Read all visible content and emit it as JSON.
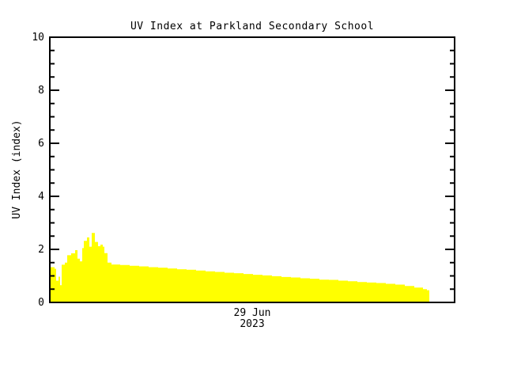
{
  "window": {
    "background": "#ffffff"
  },
  "chart_data": {
    "type": "area",
    "title": "UV Index at Parkland Secondary School",
    "ylabel": "UV Index (index)",
    "xlabel": "",
    "x_tick_labels": [
      "29 Jun",
      "2023"
    ],
    "ylim": [
      0,
      10
    ],
    "y_major_ticks": [
      0,
      2,
      4,
      6,
      8,
      10
    ],
    "y_tick_labels": [
      "0",
      "2",
      "4",
      "6",
      "8",
      "10"
    ],
    "y_minor_tick_interval": 0.5,
    "grid": false,
    "legend": "none",
    "colors": {
      "fill": "#FFFF00",
      "axis": "#000000",
      "text": "#000000",
      "background": "#FFFFFF"
    },
    "series": [
      {
        "name": "UV Index",
        "style": "filled-staircase",
        "x_unit": "fraction of x-axis (day of 29 Jun 2023)",
        "points": [
          [
            0.0,
            1.33
          ],
          [
            0.0117,
            1.27
          ],
          [
            0.0156,
            0.82
          ],
          [
            0.0215,
            0.97
          ],
          [
            0.0254,
            0.65
          ],
          [
            0.0293,
            1.42
          ],
          [
            0.0371,
            1.5
          ],
          [
            0.043,
            1.78
          ],
          [
            0.0527,
            1.85
          ],
          [
            0.0625,
            1.97
          ],
          [
            0.0684,
            1.65
          ],
          [
            0.0742,
            1.55
          ],
          [
            0.0801,
            2.05
          ],
          [
            0.084,
            2.32
          ],
          [
            0.0918,
            2.45
          ],
          [
            0.0977,
            2.1
          ],
          [
            0.1035,
            2.62
          ],
          [
            0.1113,
            2.28
          ],
          [
            0.1191,
            2.12
          ],
          [
            0.125,
            2.18
          ],
          [
            0.1309,
            2.1
          ],
          [
            0.1348,
            1.86
          ],
          [
            0.1426,
            1.5
          ],
          [
            0.1523,
            1.43
          ],
          [
            0.1738,
            1.41
          ],
          [
            0.1973,
            1.38
          ],
          [
            0.2207,
            1.36
          ],
          [
            0.2441,
            1.33
          ],
          [
            0.2676,
            1.31
          ],
          [
            0.291,
            1.28
          ],
          [
            0.3145,
            1.25
          ],
          [
            0.3379,
            1.23
          ],
          [
            0.3613,
            1.2
          ],
          [
            0.3848,
            1.17
          ],
          [
            0.4082,
            1.15
          ],
          [
            0.4316,
            1.12
          ],
          [
            0.4551,
            1.1
          ],
          [
            0.4785,
            1.07
          ],
          [
            0.502,
            1.04
          ],
          [
            0.5254,
            1.02
          ],
          [
            0.5488,
            0.99
          ],
          [
            0.5723,
            0.96
          ],
          [
            0.5957,
            0.94
          ],
          [
            0.6191,
            0.91
          ],
          [
            0.6426,
            0.89
          ],
          [
            0.666,
            0.86
          ],
          [
            0.6895,
            0.85
          ],
          [
            0.7129,
            0.82
          ],
          [
            0.7363,
            0.8
          ],
          [
            0.7598,
            0.77
          ],
          [
            0.7832,
            0.75
          ],
          [
            0.8066,
            0.73
          ],
          [
            0.8301,
            0.7
          ],
          [
            0.8535,
            0.67
          ],
          [
            0.877,
            0.62
          ],
          [
            0.9004,
            0.56
          ],
          [
            0.9219,
            0.5
          ],
          [
            0.9316,
            0.46
          ],
          [
            0.9375,
            0.0
          ]
        ]
      }
    ]
  }
}
